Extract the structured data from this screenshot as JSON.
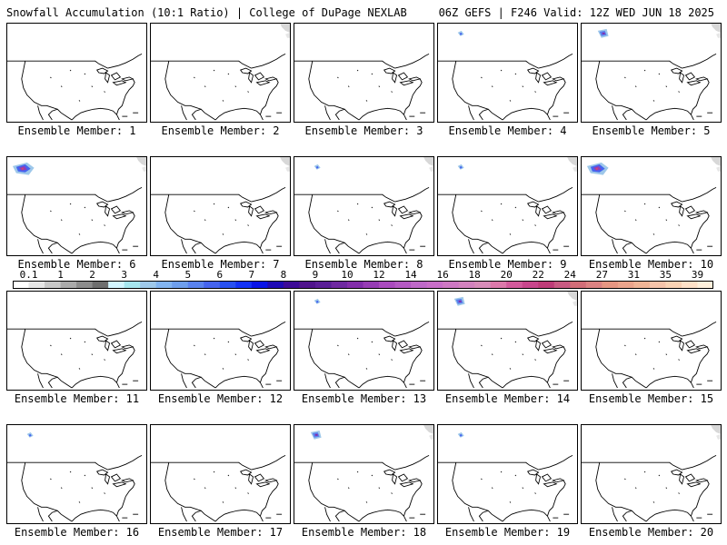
{
  "header": {
    "left_title": "Snowfall Accumulation (10:1 Ratio) | College of DuPage NEXLAB",
    "right_title": "06Z GEFS | F246 Valid: 12Z WED JUN 18 2025"
  },
  "colors": {
    "outline": "#000000",
    "background": "#ffffff"
  },
  "colorbar": {
    "colors": [
      "#ffffff",
      "#e6e6e6",
      "#c8c8c8",
      "#aaaaaa",
      "#8c8c8c",
      "#6e6e6e",
      "#d2f5ff",
      "#a6e6ee",
      "#9ec8ea",
      "#82b4f0",
      "#6e9eec",
      "#5a82ee",
      "#4664ee",
      "#2850f0",
      "#1432f5",
      "#0a14e6",
      "#1e0ab4",
      "#3c0a96",
      "#50148c",
      "#5a1e96",
      "#6e28a0",
      "#822daa",
      "#963cb4",
      "#aa4bbe",
      "#b45ac3",
      "#be69c8",
      "#c86ec8",
      "#cd78c3",
      "#d282be",
      "#d78cb9",
      "#dc78aa",
      "#d25a9b",
      "#c8468c",
      "#be3c78",
      "#c85a82",
      "#d26e78",
      "#dc8282",
      "#e69682",
      "#eba48c",
      "#f0b496",
      "#f5c3aa",
      "#fad2b4",
      "#ffe1c8",
      "#fff0dc"
    ],
    "labels": [
      {
        "text": "0.1",
        "index": 1
      },
      {
        "text": "1",
        "index": 3
      },
      {
        "text": "2",
        "index": 5
      },
      {
        "text": "3",
        "index": 7
      },
      {
        "text": "4",
        "index": 9
      },
      {
        "text": "5",
        "index": 11
      },
      {
        "text": "6",
        "index": 13
      },
      {
        "text": "7",
        "index": 15
      },
      {
        "text": "8",
        "index": 17
      },
      {
        "text": "9",
        "index": 19
      },
      {
        "text": "10",
        "index": 21
      },
      {
        "text": "12",
        "index": 23
      },
      {
        "text": "14",
        "index": 25
      },
      {
        "text": "16",
        "index": 27
      },
      {
        "text": "18",
        "index": 29
      },
      {
        "text": "20",
        "index": 31
      },
      {
        "text": "22",
        "index": 33
      },
      {
        "text": "24",
        "index": 35
      },
      {
        "text": "27",
        "index": 37
      },
      {
        "text": "31",
        "index": 39
      },
      {
        "text": "35",
        "index": 41
      },
      {
        "text": "39",
        "index": 43
      }
    ]
  },
  "panels": [
    {
      "label": "Ensemble Member: 1",
      "blobs": []
    },
    {
      "label": "Ensemble Member: 2",
      "blobs": [
        {
          "kind": "gray-ne"
        }
      ]
    },
    {
      "label": "Ensemble Member: 3",
      "blobs": []
    },
    {
      "label": "Ensemble Member: 4",
      "blobs": [
        {
          "kind": "nw-small"
        }
      ]
    },
    {
      "label": "Ensemble Member: 5",
      "blobs": [
        {
          "kind": "nw-medium"
        },
        {
          "kind": "gray-ne"
        }
      ]
    },
    {
      "label": "Ensemble Member: 6",
      "blobs": [
        {
          "kind": "nw-large"
        },
        {
          "kind": "gray-ne"
        }
      ]
    },
    {
      "label": "Ensemble Member: 7",
      "blobs": [
        {
          "kind": "gray-ne"
        }
      ]
    },
    {
      "label": "Ensemble Member: 8",
      "blobs": [
        {
          "kind": "nw-small"
        },
        {
          "kind": "gray-ne"
        }
      ]
    },
    {
      "label": "Ensemble Member: 9",
      "blobs": [
        {
          "kind": "nw-small"
        },
        {
          "kind": "gray-ne"
        }
      ]
    },
    {
      "label": "Ensemble Member: 10",
      "blobs": [
        {
          "kind": "nw-large"
        },
        {
          "kind": "gray-ne"
        }
      ]
    },
    {
      "label": "Ensemble Member: 11",
      "blobs": []
    },
    {
      "label": "Ensemble Member: 12",
      "blobs": []
    },
    {
      "label": "Ensemble Member: 13",
      "blobs": [
        {
          "kind": "nw-small"
        }
      ]
    },
    {
      "label": "Ensemble Member: 14",
      "blobs": [
        {
          "kind": "nw-medium"
        },
        {
          "kind": "gray-ne"
        }
      ]
    },
    {
      "label": "Ensemble Member: 15",
      "blobs": []
    },
    {
      "label": "Ensemble Member: 16",
      "blobs": [
        {
          "kind": "nw-small"
        }
      ]
    },
    {
      "label": "Ensemble Member: 17",
      "blobs": []
    },
    {
      "label": "Ensemble Member: 18",
      "blobs": [
        {
          "kind": "nw-medium"
        },
        {
          "kind": "gray-ne"
        }
      ]
    },
    {
      "label": "Ensemble Member: 19",
      "blobs": [
        {
          "kind": "nw-small"
        }
      ]
    },
    {
      "label": "Ensemble Member: 20",
      "blobs": [
        {
          "kind": "gray-ne"
        }
      ]
    }
  ]
}
